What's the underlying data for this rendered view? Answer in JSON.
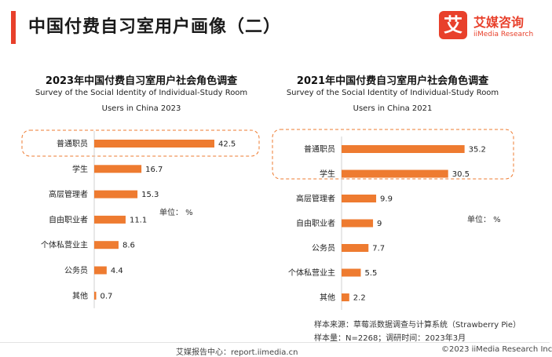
{
  "page": {
    "title": "中国付费自习室用户画像（二）",
    "accent_color": "#e8402b",
    "bar_color": "#ee7b30",
    "highlight_border_color": "#ee7b30"
  },
  "logo": {
    "mark": "艾",
    "name_cn": "艾媒咨询",
    "name_en": "iiMedia Research",
    "color": "#e8402b"
  },
  "chart_data": [
    {
      "type": "bar",
      "orientation": "horizontal",
      "title": "2023年中国付费自习室用户社会角色调查",
      "subtitle_line1": "Survey of the Social Identity of Individual-Study Room",
      "subtitle_line2": "Users in China 2023",
      "categories": [
        "普通职员",
        "学生",
        "高层管理者",
        "自由职业者",
        "个体私营业主",
        "公务员",
        "其他"
      ],
      "values": [
        42.5,
        16.7,
        15.3,
        11.1,
        8.6,
        4.4,
        0.7
      ],
      "value_labels": [
        "42.5",
        "16.7",
        "15.3",
        "11.1",
        "8.6",
        "4.4",
        "0.7"
      ],
      "unit_label": "单位： %",
      "highlighted": [
        "普通职员"
      ]
    },
    {
      "type": "bar",
      "orientation": "horizontal",
      "title": "2021年中国付费自习室用户社会角色调查",
      "subtitle_line1": "Survey of the Social Identity of Individual-Study Room",
      "subtitle_line2": "Users in China 2021",
      "categories": [
        "普通职员",
        "学生",
        "高层管理者",
        "自由职业者",
        "公务员",
        "个体私营业主",
        "其他"
      ],
      "values": [
        35.2,
        30.5,
        9.9,
        9,
        7.7,
        5.5,
        2.2
      ],
      "value_labels": [
        "35.2",
        "30.5",
        "9.9",
        "9",
        "7.7",
        "5.5",
        "2.2"
      ],
      "unit_label": "单位： %",
      "highlighted": [
        "普通职员",
        "学生"
      ]
    }
  ],
  "notes": {
    "source": "样本来源：草莓派数据调查与计算系统（Strawberry Pie）",
    "sample": "样本量：N=2268；调研时间：2023年3月"
  },
  "footer": {
    "left": "艾媒报告中心：report.iimedia.cn",
    "right": "©2023  iiMedia Research  Inc"
  }
}
